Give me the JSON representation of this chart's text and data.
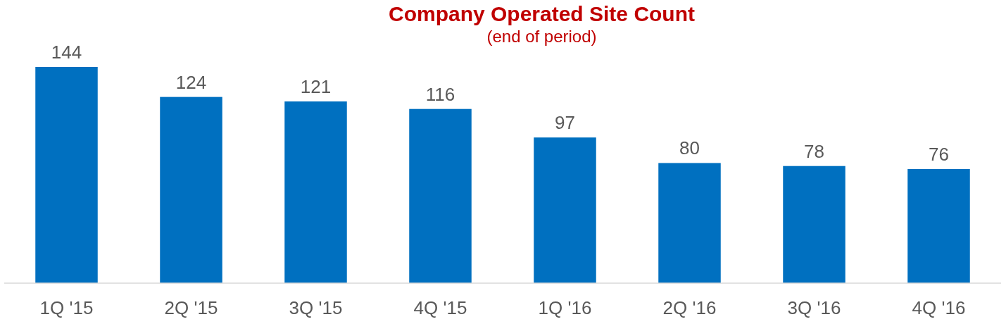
{
  "chart_data": {
    "type": "bar",
    "title": "Company Operated Site Count",
    "subtitle": "(end of period)",
    "categories": [
      "1Q '15",
      "2Q '15",
      "3Q '15",
      "4Q '15",
      "1Q '16",
      "2Q '16",
      "3Q '16",
      "4Q '16"
    ],
    "values": [
      144,
      124,
      121,
      116,
      97,
      80,
      78,
      76
    ],
    "color": "#0070c0",
    "data_labels": true
  }
}
